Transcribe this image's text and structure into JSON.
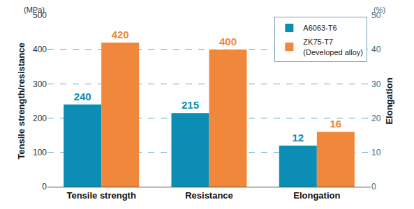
{
  "chart_data": {
    "type": "bar",
    "categories": [
      "Tensile strength",
      "Resistance",
      "Elongation"
    ],
    "series": [
      {
        "name": "A6063-T6",
        "color": "#0b8db5",
        "values": [
          240,
          215,
          null
        ]
      },
      {
        "name": "ZK75-T7 (Developed alloy)",
        "color": "#f0873a",
        "values": [
          420,
          400,
          null
        ]
      },
      {
        "name": "A6063-T6",
        "color": "#0b8db5",
        "values": [
          null,
          null,
          12
        ],
        "axis": "y2"
      },
      {
        "name": "ZK75-T7 (Developed alloy)",
        "color": "#f0873a",
        "values": [
          null,
          null,
          16
        ],
        "axis": "y2"
      }
    ],
    "ylabel": "Tensile strength/resistance",
    "y2label": "Elongation",
    "y_unit": "(MPa)",
    "y2_unit": "(%)",
    "ylim": [
      0,
      500
    ],
    "yticks": [
      0,
      100,
      200,
      300,
      400,
      500
    ],
    "y2lim": [
      0,
      50
    ],
    "y2ticks": [
      0,
      10,
      20,
      30,
      40,
      50
    ],
    "grid": true,
    "legend": "upper right",
    "data_labels": true
  }
}
